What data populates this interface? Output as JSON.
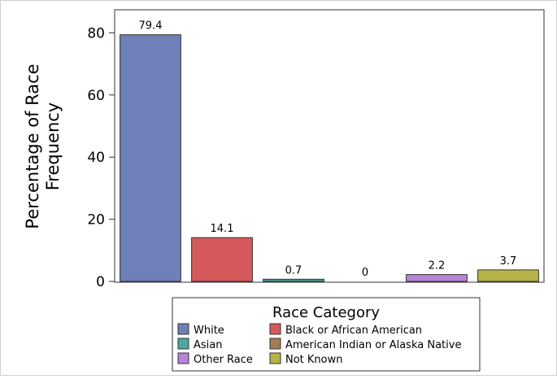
{
  "chart_data": {
    "type": "bar",
    "ylabel_lines": [
      "Percentage of Race",
      "Frequency"
    ],
    "xlabel": "",
    "ylim": [
      0,
      85
    ],
    "yticks": [
      0,
      20,
      40,
      60,
      80
    ],
    "grid": false,
    "legend_position": "bottom",
    "categories": [
      "White",
      "Black or African American",
      "Asian",
      "American Indian or Alaska Native",
      "Other Race",
      "Not Known"
    ],
    "values": [
      79.4,
      14.1,
      0.7,
      0,
      2.2,
      3.7
    ],
    "value_labels": [
      "79.4",
      "14.1",
      "0.7",
      "0",
      "2.2",
      "3.7"
    ],
    "colors": [
      "#6f7fb8",
      "#d45a5b",
      "#4aa8a0",
      "#a57d53",
      "#b784d6",
      "#b6b448"
    ],
    "legend": {
      "title": "Race Category",
      "entries": [
        "White",
        "Black or African American",
        "Asian",
        "American Indian or Alaska Native",
        "Other Race",
        "Not Known"
      ]
    }
  }
}
